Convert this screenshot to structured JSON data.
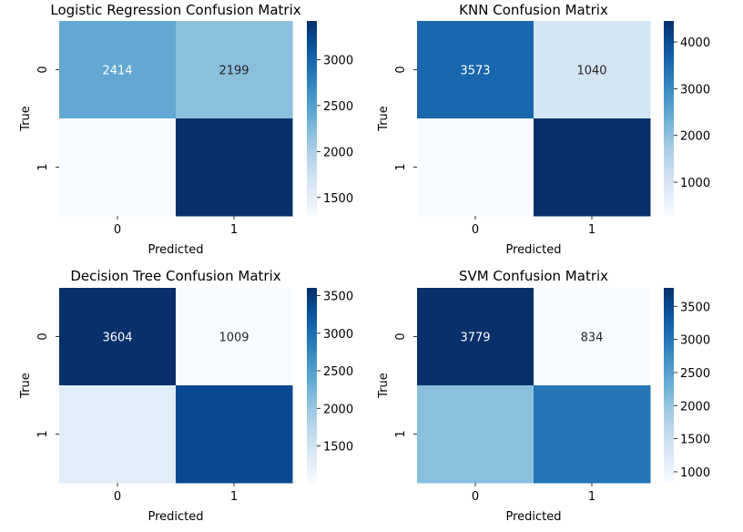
{
  "chart_data": [
    {
      "type": "heatmap",
      "title": "Logistic Regression Confusion Matrix",
      "xlabel": "Predicted",
      "ylabel": "True",
      "x_ticks": [
        "0",
        "1"
      ],
      "y_ticks": [
        "0",
        "1"
      ],
      "values": [
        [
          2414,
          2199
        ],
        [
          1300,
          3420
        ]
      ],
      "annotations": [
        [
          "2414",
          "2199"
        ],
        [
          "",
          ""
        ]
      ],
      "colormap": "Blues",
      "vmin": 1300,
      "vmax": 3420,
      "colorbar_ticks": [
        1500,
        2000,
        2500,
        3000
      ],
      "colorbar_labels": [
        "1500",
        "2000",
        "2500",
        "3000"
      ]
    },
    {
      "type": "heatmap",
      "title": "KNN Confusion Matrix",
      "xlabel": "Predicted",
      "ylabel": "True",
      "x_ticks": [
        "0",
        "1"
      ],
      "y_ticks": [
        "0",
        "1"
      ],
      "values": [
        [
          3573,
          1040
        ],
        [
          280,
          4450
        ]
      ],
      "annotations": [
        [
          "3573",
          "1040"
        ],
        [
          "",
          ""
        ]
      ],
      "colormap": "Blues",
      "vmin": 280,
      "vmax": 4450,
      "colorbar_ticks": [
        1000,
        2000,
        3000,
        4000
      ],
      "colorbar_labels": [
        "1000",
        "2000",
        "3000",
        "4000"
      ]
    },
    {
      "type": "heatmap",
      "title": "Decision Tree Confusion Matrix",
      "xlabel": "Predicted",
      "ylabel": "True",
      "x_ticks": [
        "0",
        "1"
      ],
      "y_ticks": [
        "0",
        "1"
      ],
      "values": [
        [
          3604,
          1009
        ],
        [
          1300,
          3350
        ]
      ],
      "annotations": [
        [
          "3604",
          "1009"
        ],
        [
          "",
          ""
        ]
      ],
      "colormap": "Blues",
      "vmin": 1009,
      "vmax": 3604,
      "colorbar_ticks": [
        1500,
        2000,
        2500,
        3000,
        3500
      ],
      "colorbar_labels": [
        "1500",
        "2000",
        "2500",
        "3000",
        "3500"
      ]
    },
    {
      "type": "heatmap",
      "title": "SVM Confusion Matrix",
      "xlabel": "Predicted",
      "ylabel": "True",
      "x_ticks": [
        "0",
        "1"
      ],
      "y_ticks": [
        "0",
        "1"
      ],
      "values": [
        [
          3779,
          834
        ],
        [
          2080,
          3000
        ]
      ],
      "annotations": [
        [
          "3779",
          "834"
        ],
        [
          "",
          ""
        ]
      ],
      "colormap": "Blues",
      "vmin": 834,
      "vmax": 3779,
      "colorbar_ticks": [
        1000,
        1500,
        2000,
        2500,
        3000,
        3500
      ],
      "colorbar_labels": [
        "1000",
        "1500",
        "2000",
        "2500",
        "3000",
        "3500"
      ]
    }
  ]
}
